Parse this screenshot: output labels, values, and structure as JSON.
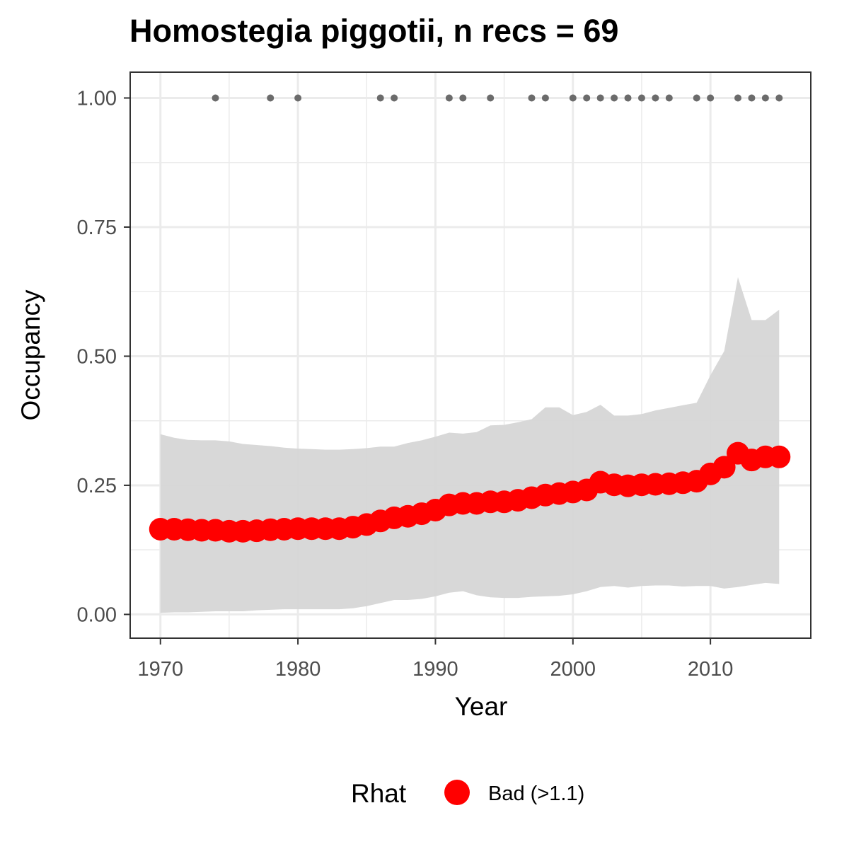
{
  "chart_data": {
    "type": "line",
    "title": "Homostegia piggotii, n recs = 69",
    "xlabel": "Year",
    "ylabel": "Occupancy",
    "xlim": [
      1967.8,
      1917
    ],
    "x_ticks": [
      "1970",
      "1980",
      "1990",
      "2000",
      "2010"
    ],
    "x_tick_values": [
      1970,
      1980,
      1990,
      2000,
      2010
    ],
    "ylim": [
      -0.046,
      1.05
    ],
    "y_ticks": [
      "0.00",
      "0.25",
      "0.50",
      "0.75",
      "1.00"
    ],
    "y_tick_values": [
      0,
      0.25,
      0.5,
      0.75,
      1.0
    ],
    "grid": true,
    "legend_position": "bottom",
    "colors": {
      "point": "#ff0000",
      "ribbon": "#d6d6d6",
      "record": "#6b6b6b",
      "grid": "#ebebeb",
      "panel_border": "#333333"
    },
    "series": [
      {
        "name": "Bad (>1.1)",
        "legend_title": "Rhat",
        "x": [
          1970,
          1971,
          1972,
          1973,
          1974,
          1975,
          1976,
          1977,
          1978,
          1979,
          1980,
          1981,
          1982,
          1983,
          1984,
          1985,
          1986,
          1987,
          1988,
          1989,
          1990,
          1991,
          1992,
          1993,
          1994,
          1995,
          1996,
          1997,
          1998,
          1999,
          2000,
          2001,
          2002,
          2003,
          2004,
          2005,
          2006,
          2007,
          2008,
          2009,
          2010,
          2011,
          2012,
          2013,
          2014,
          2015
        ],
        "values": [
          0.165,
          0.165,
          0.164,
          0.163,
          0.163,
          0.161,
          0.161,
          0.162,
          0.164,
          0.165,
          0.166,
          0.166,
          0.166,
          0.166,
          0.169,
          0.174,
          0.181,
          0.187,
          0.19,
          0.195,
          0.202,
          0.212,
          0.215,
          0.215,
          0.218,
          0.218,
          0.221,
          0.226,
          0.231,
          0.234,
          0.237,
          0.241,
          0.256,
          0.251,
          0.249,
          0.251,
          0.252,
          0.253,
          0.255,
          0.258,
          0.272,
          0.285,
          0.312,
          0.299,
          0.305,
          0.305
        ],
        "lower": [
          0.003,
          0.004,
          0.004,
          0.005,
          0.006,
          0.006,
          0.006,
          0.008,
          0.009,
          0.01,
          0.01,
          0.01,
          0.01,
          0.01,
          0.012,
          0.016,
          0.022,
          0.028,
          0.028,
          0.03,
          0.035,
          0.042,
          0.045,
          0.037,
          0.033,
          0.032,
          0.032,
          0.034,
          0.035,
          0.036,
          0.039,
          0.045,
          0.053,
          0.055,
          0.052,
          0.055,
          0.056,
          0.056,
          0.054,
          0.055,
          0.055,
          0.05,
          0.053,
          0.057,
          0.061,
          0.059
        ],
        "upper": [
          0.349,
          0.342,
          0.338,
          0.337,
          0.337,
          0.335,
          0.33,
          0.328,
          0.326,
          0.323,
          0.321,
          0.32,
          0.319,
          0.319,
          0.32,
          0.322,
          0.325,
          0.325,
          0.332,
          0.337,
          0.344,
          0.352,
          0.35,
          0.353,
          0.366,
          0.367,
          0.372,
          0.378,
          0.401,
          0.401,
          0.386,
          0.392,
          0.406,
          0.385,
          0.385,
          0.388,
          0.395,
          0.4,
          0.405,
          0.41,
          0.463,
          0.51,
          0.653,
          0.57,
          0.57,
          0.59
        ]
      }
    ],
    "records": {
      "y": 1.0,
      "x": [
        1974,
        1978,
        1980,
        1986,
        1987,
        1991,
        1992,
        1994,
        1997,
        1998,
        2000,
        2001,
        2002,
        2003,
        2004,
        2005,
        2006,
        2007,
        2009,
        2010,
        2012,
        2013,
        2014,
        2015
      ]
    }
  }
}
